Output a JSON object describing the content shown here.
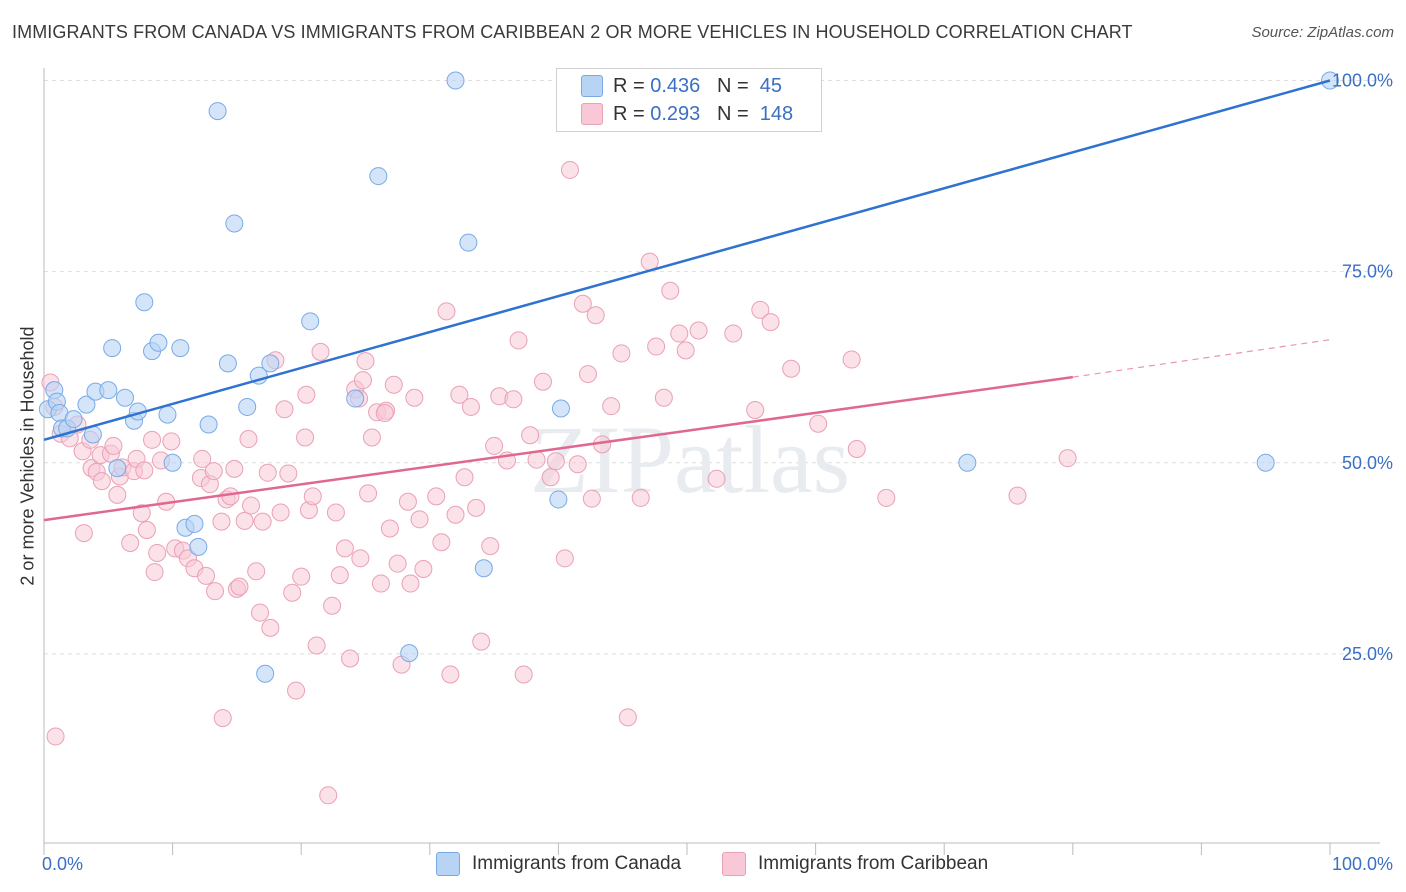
{
  "title": "IMMIGRANTS FROM CANADA VS IMMIGRANTS FROM CARIBBEAN 2 OR MORE VEHICLES IN HOUSEHOLD CORRELATION CHART",
  "source": "Source: ZipAtlas.com",
  "watermark": "ZIPatlas",
  "legend": {
    "canada": {
      "r_label": "R =",
      "r_value": "0.436",
      "n_label": "N =",
      "n_value": "45"
    },
    "caribbean": {
      "r_label": "R =",
      "r_value": "0.293",
      "n_label": "N =",
      "n_value": "148"
    }
  },
  "colors": {
    "canada_fill": "#b8d4f5",
    "canada_stroke": "#7aaae6",
    "canada_line": "#2f72d0",
    "caribbean_fill": "#f8c8d6",
    "caribbean_stroke": "#eaa0b6",
    "caribbean_line": "#e06890",
    "tick_label": "#3a6fc4",
    "grid": "#dedede"
  },
  "chart_data": {
    "type": "scatter",
    "title": "IMMIGRANTS FROM CANADA VS IMMIGRANTS FROM CARIBBEAN 2 OR MORE VEHICLES IN HOUSEHOLD CORRELATION CHART",
    "xlabel": "",
    "ylabel": "2 or more Vehicles in Household",
    "xlim": [
      0,
      100
    ],
    "ylim": [
      0,
      102
    ],
    "x_tick_labels": [
      "0.0%",
      "100.0%"
    ],
    "y_tick_labels": [
      "25.0%",
      "50.0%",
      "75.0%",
      "100.0%"
    ],
    "y_ticks": [
      25,
      50,
      75,
      100
    ],
    "series": [
      {
        "name": "Immigrants from Canada",
        "r": 0.436,
        "n": 45,
        "trend": {
          "x0": 0,
          "y0": 53.0,
          "x1": 100,
          "y1": 100.0
        },
        "points": [
          [
            0.3,
            57
          ],
          [
            0.8,
            59.5
          ],
          [
            1,
            58
          ],
          [
            1.2,
            56.5
          ],
          [
            1.4,
            54.5
          ],
          [
            1.8,
            54.5
          ],
          [
            2.3,
            55.7
          ],
          [
            3.3,
            57.6
          ],
          [
            3.8,
            53.7
          ],
          [
            4,
            59.3
          ],
          [
            5,
            59.5
          ],
          [
            5.3,
            65
          ],
          [
            5.7,
            49.3
          ],
          [
            6.3,
            58.5
          ],
          [
            7,
            55.5
          ],
          [
            7.3,
            56.7
          ],
          [
            7.8,
            71
          ],
          [
            8.4,
            64.6
          ],
          [
            8.9,
            65.7
          ],
          [
            9.6,
            56.3
          ],
          [
            10,
            50
          ],
          [
            10.6,
            65
          ],
          [
            11,
            41.5
          ],
          [
            11.7,
            42
          ],
          [
            12,
            39
          ],
          [
            12.8,
            55
          ],
          [
            13.5,
            96
          ],
          [
            14.3,
            63
          ],
          [
            14.8,
            81.3
          ],
          [
            15.8,
            57.3
          ],
          [
            16.7,
            61.4
          ],
          [
            17.2,
            22.4
          ],
          [
            17.6,
            63
          ],
          [
            20.7,
            68.5
          ],
          [
            24.2,
            58.4
          ],
          [
            26,
            87.5
          ],
          [
            28.4,
            25.1
          ],
          [
            32,
            100
          ],
          [
            33,
            78.8
          ],
          [
            34.2,
            36.2
          ],
          [
            40.2,
            57.1
          ],
          [
            40,
            45.2
          ],
          [
            71.8,
            50
          ],
          [
            95,
            50
          ],
          [
            100,
            100
          ]
        ]
      },
      {
        "name": "Immigrants from Caribbean",
        "r": 0.293,
        "n": 148,
        "trend": {
          "x0": 0,
          "y0": 42.5,
          "x1": 80,
          "y1": 61.2,
          "dash_x1": 100,
          "dash_y1": 66.1
        },
        "points": [
          [
            0.5,
            60.5
          ],
          [
            0.8,
            57.3
          ],
          [
            1.3,
            53.8
          ],
          [
            2,
            53.2
          ],
          [
            2.6,
            55
          ],
          [
            3,
            51.5
          ],
          [
            3.1,
            40.8
          ],
          [
            3.6,
            53
          ],
          [
            3.7,
            49.3
          ],
          [
            4.1,
            48.8
          ],
          [
            4.4,
            51
          ],
          [
            4.5,
            47.6
          ],
          [
            5.2,
            51.2
          ],
          [
            5.4,
            52.2
          ],
          [
            5.7,
            45.8
          ],
          [
            5.9,
            48.2
          ],
          [
            6.1,
            49.4
          ],
          [
            6.7,
            39.5
          ],
          [
            7,
            48.9
          ],
          [
            7.2,
            50.5
          ],
          [
            7.6,
            43.4
          ],
          [
            7.8,
            49
          ],
          [
            8,
            41.2
          ],
          [
            8.4,
            53
          ],
          [
            8.6,
            35.7
          ],
          [
            8.8,
            38.2
          ],
          [
            9.1,
            50.3
          ],
          [
            9.5,
            44.9
          ],
          [
            9.9,
            52.8
          ],
          [
            10.2,
            38.8
          ],
          [
            10.8,
            38.5
          ],
          [
            11.2,
            37.5
          ],
          [
            11.7,
            36.2
          ],
          [
            12.2,
            48
          ],
          [
            12.3,
            50.5
          ],
          [
            12.6,
            35.2
          ],
          [
            12.9,
            47.2
          ],
          [
            13.2,
            48.9
          ],
          [
            13.3,
            33.2
          ],
          [
            13.8,
            42.3
          ],
          [
            14.2,
            45.2
          ],
          [
            14.5,
            45.6
          ],
          [
            14.8,
            49.2
          ],
          [
            15,
            33.5
          ],
          [
            15.2,
            33.8
          ],
          [
            15.6,
            42.4
          ],
          [
            15.9,
            53.1
          ],
          [
            16.1,
            44.4
          ],
          [
            16.5,
            35.8
          ],
          [
            16.8,
            30.4
          ],
          [
            17,
            42.3
          ],
          [
            17.4,
            48.7
          ],
          [
            17.6,
            28.4
          ],
          [
            18,
            63.4
          ],
          [
            18.4,
            43.5
          ],
          [
            18.7,
            57
          ],
          [
            19,
            48.6
          ],
          [
            19.3,
            33
          ],
          [
            19.6,
            20.2
          ],
          [
            20,
            35.1
          ],
          [
            20.3,
            53.3
          ],
          [
            20.6,
            43.8
          ],
          [
            20.9,
            45.6
          ],
          [
            21.2,
            26.1
          ],
          [
            21.5,
            64.5
          ],
          [
            22.4,
            31.3
          ],
          [
            22.7,
            43.5
          ],
          [
            23,
            35.3
          ],
          [
            23.4,
            38.8
          ],
          [
            23.8,
            24.4
          ],
          [
            24.2,
            59.6
          ],
          [
            24.5,
            58.4
          ],
          [
            24.8,
            60.8
          ],
          [
            25,
            63.3
          ],
          [
            25.2,
            46
          ],
          [
            25.5,
            53.3
          ],
          [
            25.9,
            56.6
          ],
          [
            26.2,
            34.2
          ],
          [
            26.6,
            56.8
          ],
          [
            26.9,
            41.4
          ],
          [
            27.2,
            60.2
          ],
          [
            27.5,
            36.8
          ],
          [
            27.8,
            23.6
          ],
          [
            28.3,
            44.9
          ],
          [
            28.5,
            34.2
          ],
          [
            28.8,
            58.5
          ],
          [
            29.2,
            42.6
          ],
          [
            29.5,
            36.1
          ],
          [
            30.5,
            45.6
          ],
          [
            30.9,
            39.6
          ],
          [
            31.3,
            69.8
          ],
          [
            31.6,
            22.3
          ],
          [
            32,
            43.2
          ],
          [
            32.3,
            58.9
          ],
          [
            32.7,
            48.1
          ],
          [
            33.2,
            57.3
          ],
          [
            33.6,
            44.1
          ],
          [
            34,
            26.6
          ],
          [
            34.7,
            39.1
          ],
          [
            35,
            52.2
          ],
          [
            35.4,
            58.7
          ],
          [
            36,
            50.3
          ],
          [
            36.5,
            58.3
          ],
          [
            36.9,
            66
          ],
          [
            37.3,
            22.3
          ],
          [
            37.8,
            53.6
          ],
          [
            38.3,
            50.4
          ],
          [
            38.8,
            60.6
          ],
          [
            39.4,
            48.1
          ],
          [
            39.8,
            50.2
          ],
          [
            40.5,
            37.5
          ],
          [
            40.9,
            88.3
          ],
          [
            41.5,
            49.8
          ],
          [
            41.9,
            70.8
          ],
          [
            42.3,
            61.6
          ],
          [
            42.6,
            45.3
          ],
          [
            42.9,
            69.3
          ],
          [
            43.4,
            52.4
          ],
          [
            44.1,
            57.4
          ],
          [
            44.9,
            64.3
          ],
          [
            45.4,
            16.7
          ],
          [
            46.4,
            45.4
          ],
          [
            47.1,
            76.3
          ],
          [
            47.6,
            65.2
          ],
          [
            48.2,
            58.5
          ],
          [
            48.7,
            72.5
          ],
          [
            49.4,
            66.9
          ],
          [
            49.9,
            64.7
          ],
          [
            50.9,
            67.3
          ],
          [
            52.3,
            47.9
          ],
          [
            53.6,
            66.9
          ],
          [
            55.3,
            56.9
          ],
          [
            55.7,
            70
          ],
          [
            56.5,
            68.4
          ],
          [
            58.1,
            62.3
          ],
          [
            60.2,
            55.1
          ],
          [
            62.8,
            63.5
          ],
          [
            63.2,
            51.8
          ],
          [
            65.5,
            45.4
          ],
          [
            75.7,
            45.7
          ],
          [
            79.6,
            50.6
          ],
          [
            13.9,
            16.6
          ],
          [
            22.1,
            6.5
          ],
          [
            0.9,
            14.2
          ],
          [
            26.5,
            56.5
          ],
          [
            20.4,
            58.9
          ],
          [
            24.6,
            37.5
          ]
        ]
      }
    ]
  }
}
